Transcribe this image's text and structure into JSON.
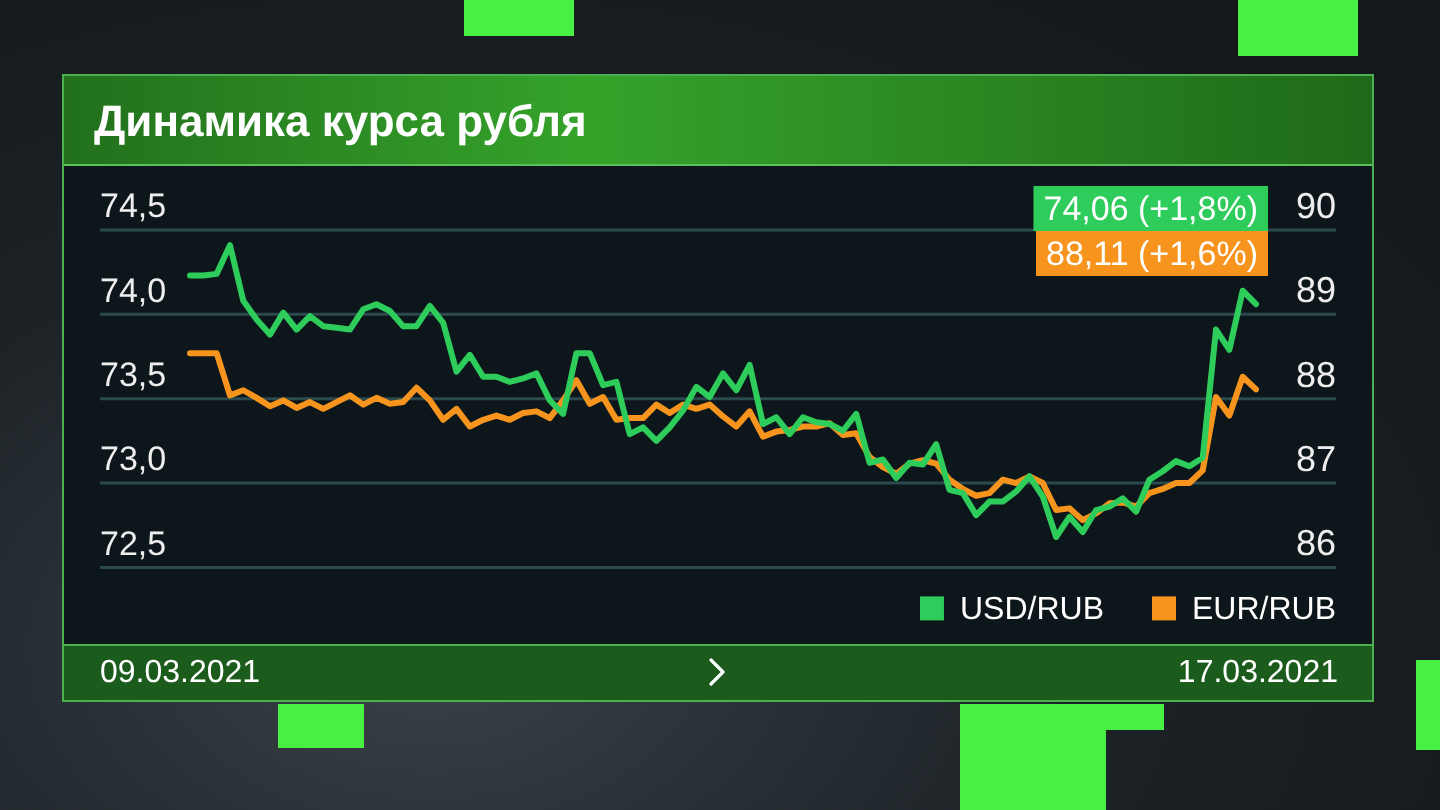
{
  "chart_data": {
    "type": "line",
    "title": "Динамика курса рубля",
    "categories": [
      null,
      null,
      null,
      null,
      null,
      null,
      null,
      null,
      null,
      null,
      null,
      null,
      null,
      null,
      null,
      null,
      null,
      null,
      null,
      null,
      null,
      null,
      null,
      null,
      null,
      null,
      null,
      null,
      null,
      null,
      null,
      null,
      null,
      null,
      null,
      null,
      null,
      null,
      null,
      null,
      null,
      null,
      null,
      null,
      null,
      null,
      null,
      null,
      null,
      null,
      null,
      null,
      null,
      null,
      null,
      null,
      null,
      null,
      null,
      null,
      null,
      null,
      null,
      null,
      null,
      null,
      null,
      null,
      null,
      null,
      null,
      null,
      null,
      null,
      null,
      null,
      null,
      null,
      null,
      null,
      null
    ],
    "series": [
      {
        "name": "USD/RUB",
        "color": "#2ecc5a",
        "values": [
          74.23,
          74.23,
          74.24,
          74.41,
          74.08,
          73.97,
          73.88,
          74.01,
          73.91,
          73.99,
          73.93,
          73.92,
          73.91,
          74.03,
          74.06,
          74.02,
          73.93,
          73.93,
          74.05,
          73.95,
          73.66,
          73.76,
          73.63,
          73.63,
          73.6,
          73.62,
          73.65,
          73.49,
          73.41,
          73.77,
          73.77,
          73.58,
          73.6,
          73.29,
          73.33,
          73.25,
          73.33,
          73.43,
          73.57,
          73.51,
          73.65,
          73.55,
          73.7,
          73.35,
          73.39,
          73.29,
          73.39,
          73.36,
          73.35,
          73.31,
          73.41,
          73.12,
          73.14,
          73.03,
          73.12,
          73.11,
          73.23,
          72.96,
          72.94,
          72.81,
          72.89,
          72.89,
          72.95,
          73.04,
          72.92,
          72.68,
          72.8,
          72.71,
          72.84,
          72.86,
          72.91,
          72.83,
          73.02,
          73.07,
          73.13,
          73.1,
          73.15,
          73.91,
          73.79,
          74.14,
          74.06
        ]
      },
      {
        "name": "EUR/RUB",
        "color": "#f7941d",
        "axis": "y2",
        "values": [
          88.54,
          88.54,
          88.54,
          88.04,
          88.1,
          88.01,
          87.91,
          87.98,
          87.89,
          87.96,
          87.88,
          87.96,
          88.04,
          87.93,
          88.01,
          87.94,
          87.96,
          88.13,
          87.98,
          87.75,
          87.88,
          87.67,
          87.75,
          87.8,
          87.75,
          87.83,
          87.85,
          87.77,
          87.98,
          88.22,
          87.94,
          88.02,
          87.75,
          87.77,
          87.77,
          87.93,
          87.83,
          87.93,
          87.88,
          87.93,
          87.79,
          87.67,
          87.85,
          87.55,
          87.61,
          87.63,
          87.67,
          87.67,
          87.71,
          87.57,
          87.59,
          87.31,
          87.19,
          87.11,
          87.23,
          87.27,
          87.23,
          87.04,
          86.93,
          86.85,
          86.88,
          87.04,
          87.0,
          87.08,
          87.0,
          86.68,
          86.7,
          86.56,
          86.64,
          86.76,
          86.77,
          86.72,
          86.88,
          86.93,
          87.0,
          87.0,
          87.15,
          88.02,
          87.8,
          88.26,
          88.11
        ]
      }
    ],
    "ylim": [
      72.5,
      74.5
    ],
    "yticks": [
      {
        "value": 72.5,
        "label": "72,5"
      },
      {
        "value": 73,
        "label": "73,0"
      },
      {
        "value": 73.5,
        "label": "73,5"
      },
      {
        "value": 74,
        "label": "74,0"
      },
      {
        "value": 74.5,
        "label": "74,5"
      }
    ],
    "y2lim": [
      86,
      90
    ],
    "y2ticks": [
      86,
      87,
      88,
      89,
      90
    ],
    "grid": "y",
    "legend": "bottom right",
    "marker": "none",
    "line_style": "solid",
    "annotations": [
      "74,06 (+1,8%)",
      "88,11 (+1,6%)",
      "09.03.2021",
      "17.03.2021"
    ]
  }
}
